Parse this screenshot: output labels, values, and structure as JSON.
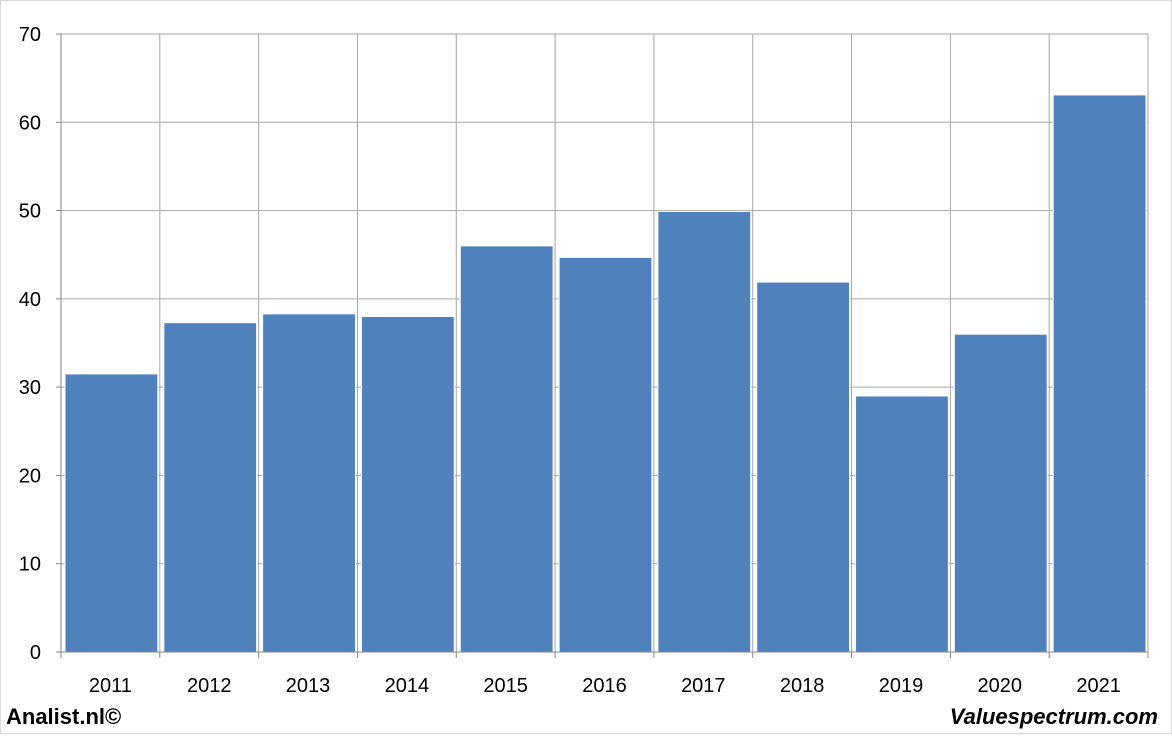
{
  "chart_data": {
    "type": "bar",
    "title": "",
    "xlabel": "",
    "ylabel": "",
    "categories": [
      "2011",
      "2012",
      "2013",
      "2014",
      "2015",
      "2016",
      "2017",
      "2018",
      "2019",
      "2020",
      "2021"
    ],
    "values": [
      31.5,
      37.3,
      38.3,
      38.0,
      46.0,
      44.7,
      49.9,
      41.9,
      29.0,
      36.0,
      63.1
    ],
    "ylim": [
      0,
      70
    ],
    "yticks": [
      0,
      10,
      20,
      30,
      40,
      50,
      60,
      70
    ],
    "ytick_labels": [
      "0",
      "10",
      "20",
      "30",
      "40",
      "50",
      "60",
      "70"
    ],
    "grid": true,
    "bar_color": "#4F81BD",
    "legend": "none"
  },
  "footer": {
    "left_text": "Analist.nl©",
    "right_text": "Valuespectrum.com"
  }
}
